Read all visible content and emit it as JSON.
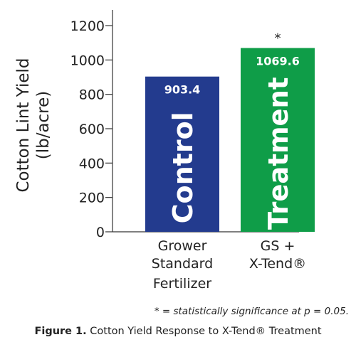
{
  "chart_data": {
    "type": "bar",
    "title": "",
    "ylabel": [
      "Cotton Lint Yield",
      "(lb/acre)"
    ],
    "ylim": [
      0,
      1200
    ],
    "yticks": [
      0,
      200,
      400,
      600,
      800,
      1000,
      1200
    ],
    "grid": false,
    "categories": [
      {
        "lines": [
          "Grower",
          "Standard",
          "Fertilizer"
        ]
      },
      {
        "lines": [
          "GS +",
          "X-Tend®"
        ]
      }
    ],
    "bars": [
      {
        "value": 903.4,
        "value_label": "903.4",
        "bar_label": "Control",
        "color": "#233b8e"
      },
      {
        "value": 1069.6,
        "value_label": "1069.6",
        "bar_label": "Treatment",
        "color": "#0f9d48",
        "significance": "*"
      }
    ]
  },
  "footnote": "* = statistically significance at p = 0.05.",
  "caption": {
    "prefix": "Figure 1.",
    "text": " Cotton Yield Response to X-Tend® Treatment"
  }
}
